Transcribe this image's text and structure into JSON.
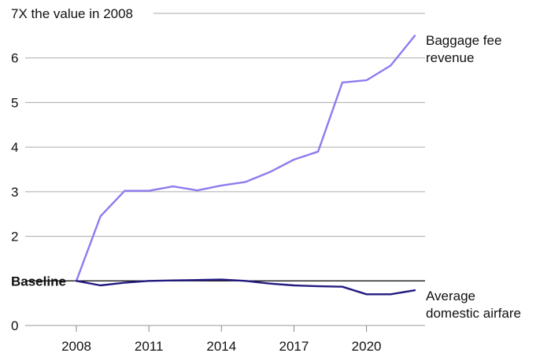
{
  "chart_data": {
    "type": "line",
    "title": "",
    "xlabel": "",
    "ylabel": "",
    "x": [
      2008,
      2009,
      2010,
      2011,
      2012,
      2013,
      2014,
      2015,
      2016,
      2017,
      2018,
      2019,
      2020,
      2021,
      2022
    ],
    "xticks": [
      "2008",
      "2011",
      "2014",
      "2017",
      "2020"
    ],
    "xlim": [
      2008,
      2022
    ],
    "yticks": [
      {
        "value": 0,
        "label": "0"
      },
      {
        "value": 1,
        "label": "Baseline"
      },
      {
        "value": 2,
        "label": "2"
      },
      {
        "value": 3,
        "label": "3"
      },
      {
        "value": 4,
        "label": "4"
      },
      {
        "value": 5,
        "label": "5"
      },
      {
        "value": 6,
        "label": "6"
      },
      {
        "value": 7,
        "label": "7X the value in 2008"
      }
    ],
    "ylim": [
      0,
      7
    ],
    "grid": true,
    "series": [
      {
        "name": "Baggage fee revenue",
        "label_lines": [
          "Baggage fee",
          "revenue"
        ],
        "color": "#8c7cf0",
        "values": [
          1.0,
          2.45,
          3.02,
          3.02,
          3.12,
          3.03,
          3.14,
          3.22,
          3.44,
          3.72,
          3.9,
          5.45,
          5.5,
          5.83,
          6.5
        ]
      },
      {
        "name": "Average domestic airfare",
        "label_lines": [
          "Average",
          "domestic airfare"
        ],
        "color": "#231a80",
        "values": [
          1.0,
          0.9,
          0.96,
          1.0,
          1.01,
          1.02,
          1.03,
          1.0,
          0.94,
          0.9,
          0.88,
          0.87,
          0.7,
          0.7,
          0.79
        ]
      }
    ]
  }
}
